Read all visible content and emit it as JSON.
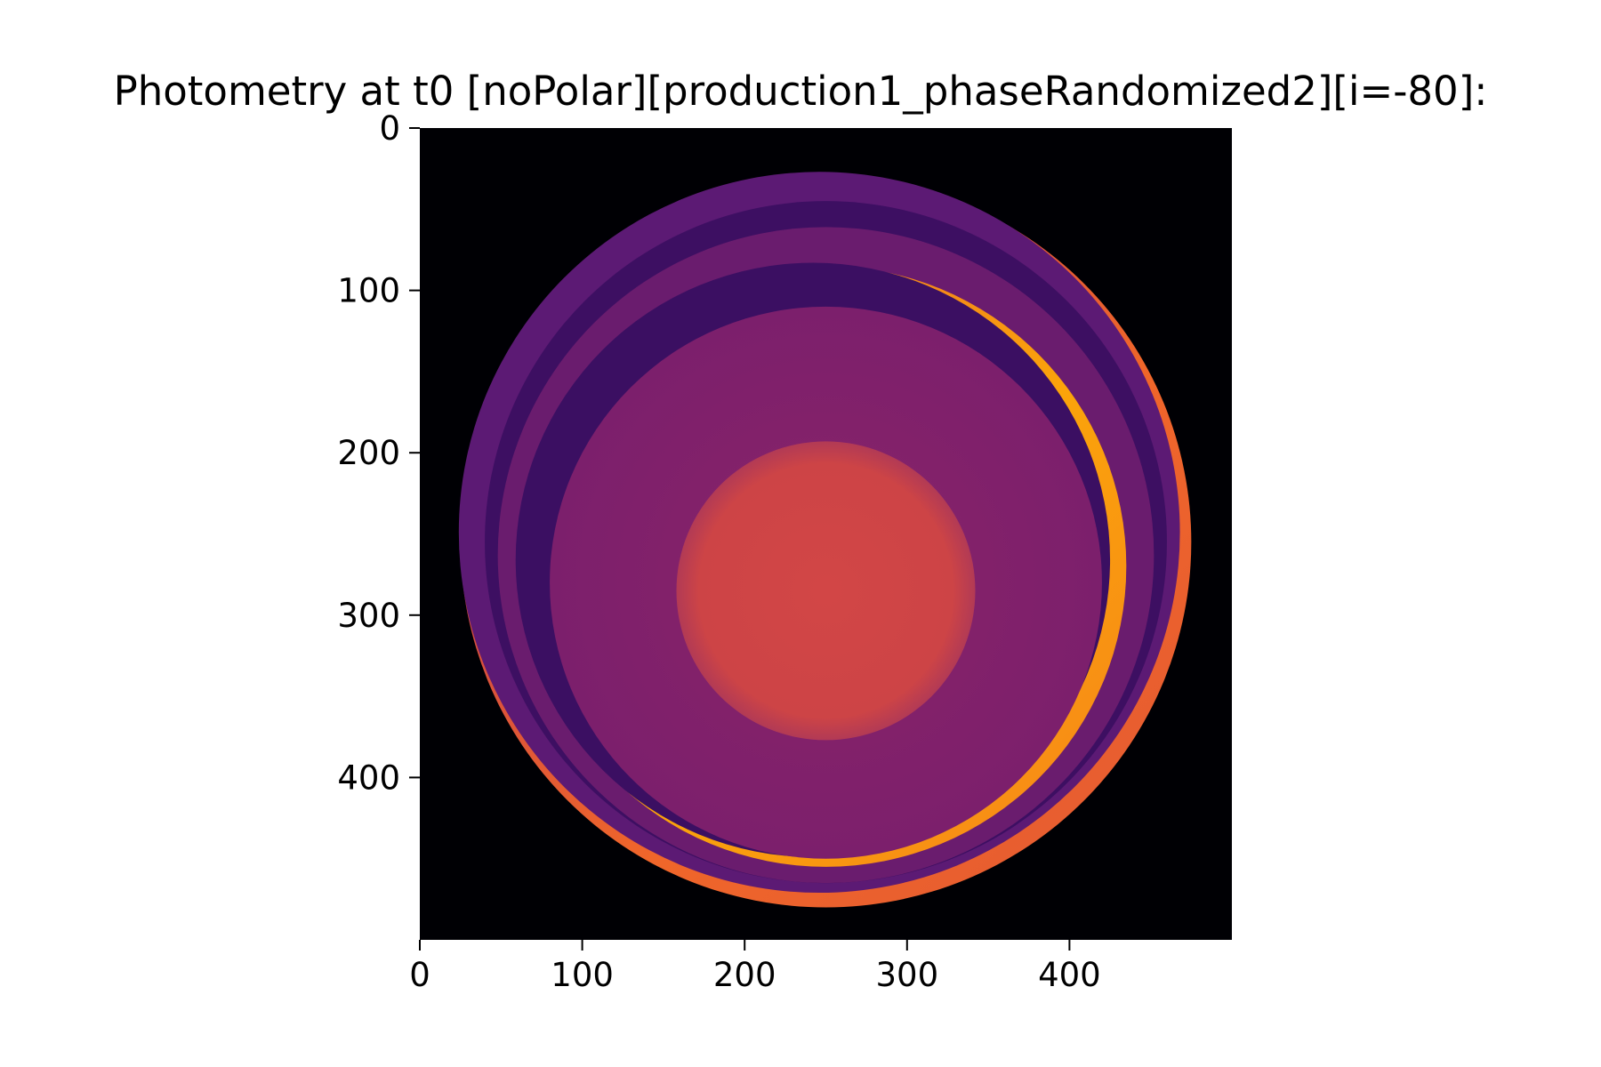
{
  "chart_data": {
    "type": "heatmap",
    "title": "Photometry at t0 [noPolar][production1_phaseRandomized2][i=-80]:",
    "xlabel": "",
    "ylabel": "",
    "xlim": [
      0,
      500
    ],
    "ylim": [
      500,
      0
    ],
    "x_ticks": [
      0,
      100,
      200,
      300,
      400
    ],
    "y_ticks": [
      0,
      100,
      200,
      300,
      400
    ],
    "colormap": "inferno",
    "background_value_color": "#000004",
    "image_size": [
      500,
      500
    ],
    "features": [
      {
        "name": "outer disc",
        "center": [
          250,
          255
        ],
        "radius": 225
      },
      {
        "name": "outer ring",
        "center": [
          250,
          255
        ],
        "radius": 210
      },
      {
        "name": "inner ring",
        "center": [
          250,
          270
        ],
        "radius": 185
      },
      {
        "name": "inner disc",
        "center": [
          250,
          280
        ],
        "radius": 170
      },
      {
        "name": "central spot",
        "center": [
          250,
          285
        ],
        "radius": 92
      }
    ]
  }
}
